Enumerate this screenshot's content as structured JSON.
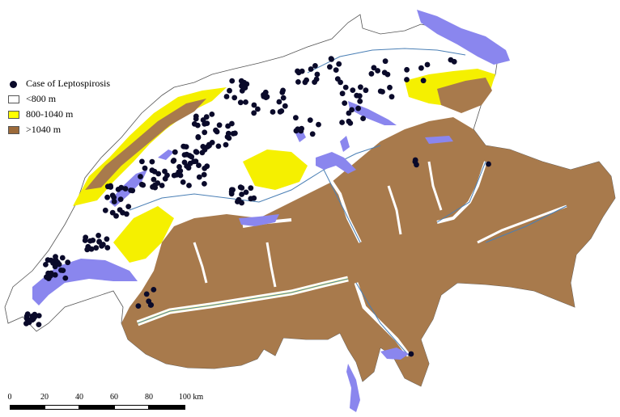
{
  "legend": {
    "items": [
      {
        "label": "Case of Leptospirosis",
        "kind": "point",
        "color": "#0a0a2a"
      },
      {
        "label": "<800 m",
        "kind": "area",
        "color": "#ffffff"
      },
      {
        "label": "800-1040 m",
        "kind": "area",
        "color": "#ffff00"
      },
      {
        "label": ">1040 m",
        "kind": "area",
        "color": "#9c6a3a"
      }
    ]
  },
  "scale_bar": {
    "labels": [
      "0",
      "20",
      "40",
      "60",
      "80",
      "100 km"
    ]
  },
  "colors": {
    "lowland": "#ffffff",
    "midland": "#f5f000",
    "alpine": "#a87a4c",
    "lake": "#8a86ee",
    "river": "#4a7fb5",
    "case_point": "#0a0a2a"
  },
  "map_features": {
    "lakes": [
      "lake-geneva",
      "lake-neuchatel",
      "lake-constance",
      "lake-lucerne",
      "lake-zurich",
      "lake-maggiore",
      "lake-thun"
    ],
    "case_count_shown": 247
  }
}
